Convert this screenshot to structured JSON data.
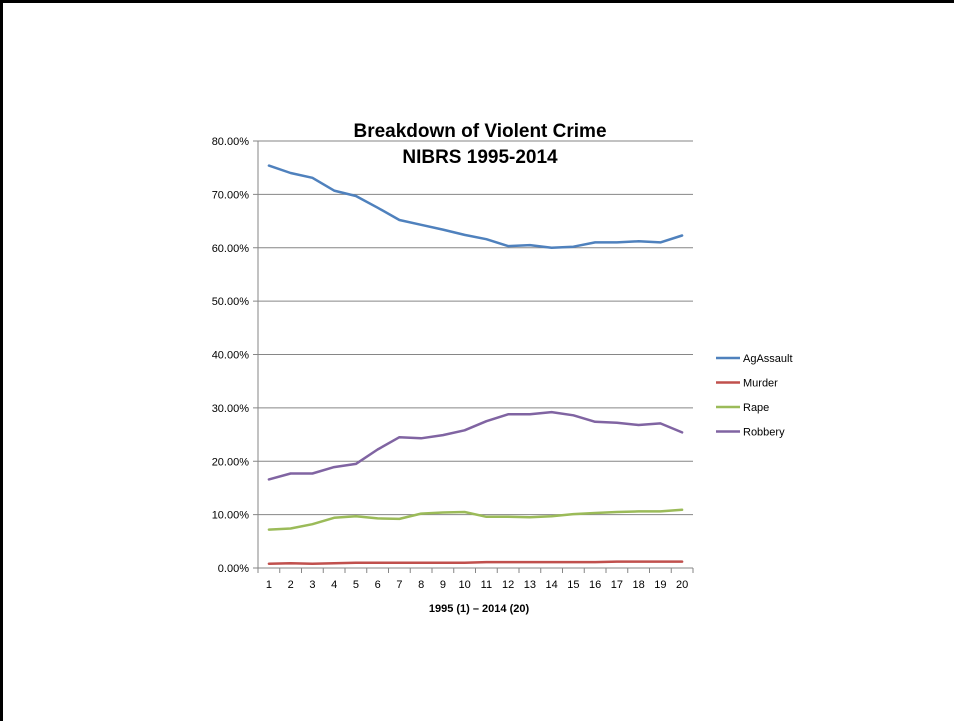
{
  "chart_data": {
    "type": "line",
    "title": [
      "Breakdown of Violent Crime",
      "NIBRS 1995-2014"
    ],
    "xlabel": "1995 (1) – 2014 (20)",
    "ylabel": "",
    "x": [
      1,
      2,
      3,
      4,
      5,
      6,
      7,
      8,
      9,
      10,
      11,
      12,
      13,
      14,
      15,
      16,
      17,
      18,
      19,
      20
    ],
    "ylim": [
      0,
      80
    ],
    "yticks": [
      0,
      10,
      20,
      30,
      40,
      50,
      60,
      70,
      80
    ],
    "ytick_labels": [
      "0.00%",
      "10.00%",
      "20.00%",
      "30.00%",
      "40.00%",
      "50.00%",
      "60.00%",
      "70.00%",
      "80.00%"
    ],
    "grid": "horizontal",
    "legend_position": "right",
    "series": [
      {
        "name": "AgAssault",
        "color": "#4F81BD",
        "values": [
          75.4,
          74.0,
          73.1,
          70.7,
          69.7,
          67.5,
          65.2,
          64.3,
          63.4,
          62.4,
          61.6,
          60.3,
          60.5,
          60.0,
          60.2,
          61.0,
          61.0,
          61.2,
          61.0,
          62.3
        ]
      },
      {
        "name": "Murder",
        "color": "#C0504D",
        "values": [
          0.8,
          0.9,
          0.8,
          0.9,
          1.0,
          1.0,
          1.0,
          1.0,
          1.0,
          1.0,
          1.1,
          1.1,
          1.1,
          1.1,
          1.1,
          1.1,
          1.2,
          1.2,
          1.2,
          1.2
        ]
      },
      {
        "name": "Rape",
        "color": "#9BBB59",
        "values": [
          7.2,
          7.4,
          8.2,
          9.4,
          9.7,
          9.3,
          9.2,
          10.2,
          10.4,
          10.5,
          9.6,
          9.6,
          9.5,
          9.7,
          10.1,
          10.3,
          10.5,
          10.6,
          10.6,
          10.9
        ]
      },
      {
        "name": "Robbery",
        "color": "#8064A2",
        "values": [
          16.6,
          17.7,
          17.7,
          18.9,
          19.5,
          22.2,
          24.5,
          24.3,
          24.9,
          25.8,
          27.5,
          28.8,
          28.8,
          29.2,
          28.6,
          27.4,
          27.2,
          26.8,
          27.1,
          25.4
        ]
      }
    ]
  }
}
